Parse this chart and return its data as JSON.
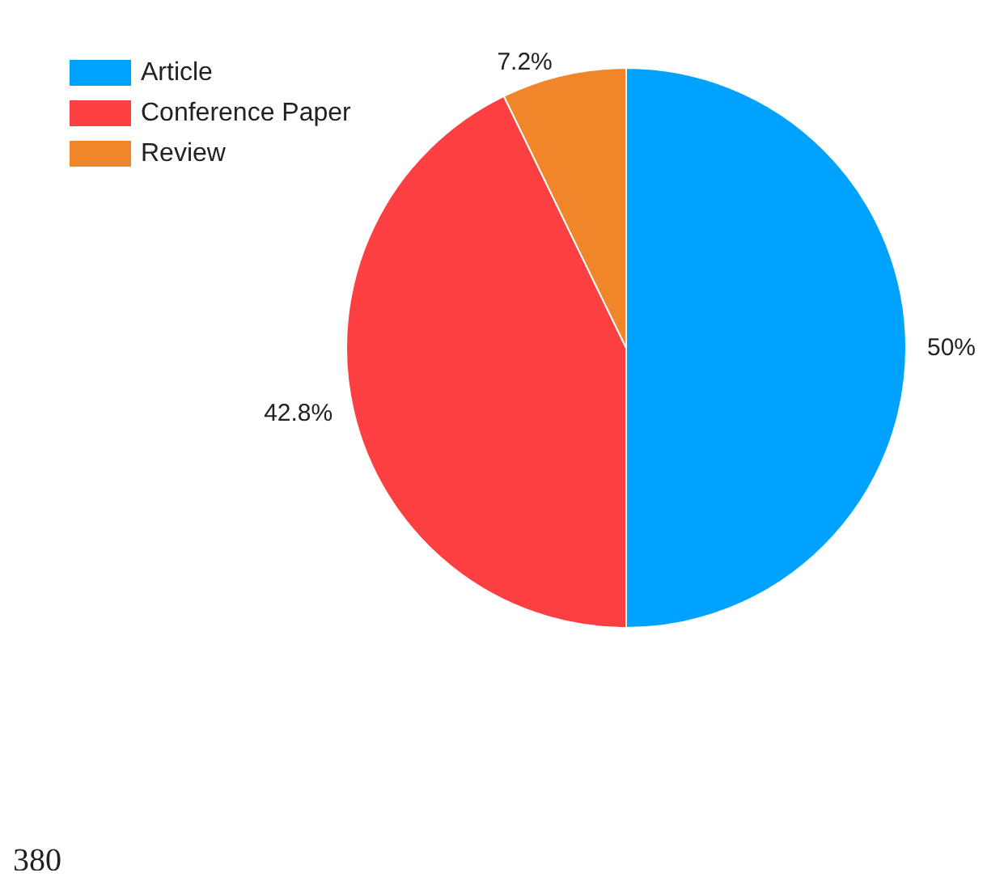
{
  "chart_data": {
    "type": "pie",
    "categories": [
      "Article",
      "Conference Paper",
      "Review"
    ],
    "values": [
      50,
      42.8,
      7.2
    ],
    "value_labels": [
      "50%",
      "42.8%",
      "7.2%"
    ],
    "colors": [
      "#00a2ff",
      "#fc3f41",
      "#f0852a"
    ],
    "legend": "top left",
    "annotations": [
      "380"
    ]
  }
}
